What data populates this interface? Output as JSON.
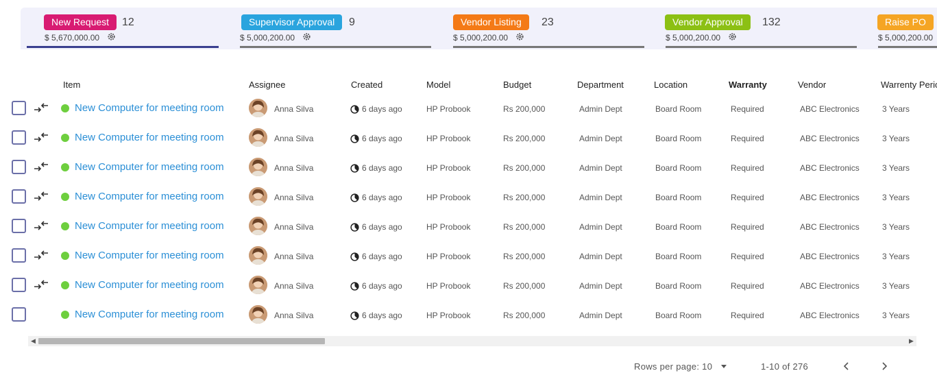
{
  "stages": [
    {
      "label": "New Request",
      "count": "12",
      "amount": "$ 5,670,000.00",
      "color": "#d81b72",
      "active": true
    },
    {
      "label": "Supervisor Approval",
      "count": "9",
      "amount": "$ 5,000,200.00",
      "color": "#2aa4de",
      "active": false
    },
    {
      "label": "Vendor Listing",
      "count": "23",
      "amount": "$ 5,000,200.00",
      "color": "#f47a16",
      "active": false
    },
    {
      "label": "Vendor Approval",
      "count": "132",
      "amount": "$ 5,000,200.00",
      "color": "#8cc014",
      "active": false
    },
    {
      "label": "Raise PO",
      "count": "",
      "amount": "$ 5,000,200.00",
      "color": "#f5a524",
      "active": false
    }
  ],
  "table": {
    "columns": [
      "Item",
      "Assignee",
      "Created",
      "Model",
      "Budget",
      "Department",
      "Location",
      "Warranty",
      "Vendor",
      "Warrenty Period"
    ],
    "rows": [
      {
        "item": "New Computer for meeting room",
        "assignee": "Anna Silva",
        "created": "6 days ago",
        "model": "HP Probook",
        "budget": "Rs 200,000",
        "department": "Admin Dept",
        "location": "Board Room",
        "warranty": "Required",
        "vendor": "ABC Electronics",
        "period": "3 Years",
        "movable": true
      },
      {
        "item": "New Computer for meeting room",
        "assignee": "Anna Silva",
        "created": "6 days ago",
        "model": "HP Probook",
        "budget": "Rs 200,000",
        "department": "Admin Dept",
        "location": "Board Room",
        "warranty": "Required",
        "vendor": "ABC Electronics",
        "period": "3 Years",
        "movable": true
      },
      {
        "item": "New Computer for meeting room",
        "assignee": "Anna Silva",
        "created": "6 days ago",
        "model": "HP Probook",
        "budget": "Rs 200,000",
        "department": "Admin Dept",
        "location": "Board Room",
        "warranty": "Required",
        "vendor": "ABC Electronics",
        "period": "3 Years",
        "movable": true
      },
      {
        "item": "New Computer for meeting room",
        "assignee": "Anna Silva",
        "created": "6 days ago",
        "model": "HP Probook",
        "budget": "Rs 200,000",
        "department": "Admin Dept",
        "location": "Board Room",
        "warranty": "Required",
        "vendor": "ABC Electronics",
        "period": "3 Years",
        "movable": true
      },
      {
        "item": "New Computer for meeting room",
        "assignee": "Anna Silva",
        "created": "6 days ago",
        "model": "HP Probook",
        "budget": "Rs 200,000",
        "department": "Admin Dept",
        "location": "Board Room",
        "warranty": "Required",
        "vendor": "ABC Electronics",
        "period": "3 Years",
        "movable": true
      },
      {
        "item": "New Computer for meeting room",
        "assignee": "Anna Silva",
        "created": "6 days ago",
        "model": "HP Probook",
        "budget": "Rs 200,000",
        "department": "Admin Dept",
        "location": "Board Room",
        "warranty": "Required",
        "vendor": "ABC Electronics",
        "period": "3 Years",
        "movable": true
      },
      {
        "item": "New Computer for meeting room",
        "assignee": "Anna Silva",
        "created": "6 days ago",
        "model": "HP Probook",
        "budget": "Rs 200,000",
        "department": "Admin Dept",
        "location": "Board Room",
        "warranty": "Required",
        "vendor": "ABC Electronics",
        "period": "3 Years",
        "movable": true
      },
      {
        "item": "New Computer for meeting room",
        "assignee": "Anna Silva",
        "created": "6 days ago",
        "model": "HP Probook",
        "budget": "Rs 200,000",
        "department": "Admin Dept",
        "location": "Board Room",
        "warranty": "Required",
        "vendor": "ABC Electronics",
        "period": "3 Years",
        "movable": false
      }
    ],
    "status_color": "#6ecf3e"
  },
  "pagination": {
    "rows_per_page_label": "Rows per page: 10",
    "range": "1-10 of 276"
  },
  "icons": {
    "stage_settings": "gear-icon",
    "row_move": "transfer-arrows-icon",
    "created": "clock-icon",
    "prev": "chevron-left-icon",
    "next": "chevron-right-icon"
  }
}
